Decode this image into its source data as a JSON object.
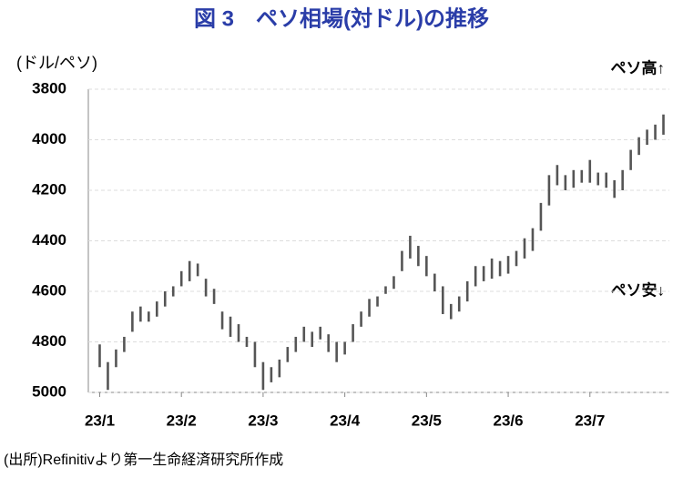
{
  "chart_data": {
    "type": "range",
    "title": "図 3　ペソ相場(対ドル)の推移",
    "y_label": "(ドル/ペソ)",
    "annotations": [
      "ペソ高↑",
      "ペソ安↓"
    ],
    "source": "(出所)Refinitivより第一生命経済研究所作成",
    "color": "#555555",
    "inverted": true,
    "grid": true,
    "ylim": [
      3800,
      5000
    ],
    "yticks": [
      3800,
      4000,
      4200,
      4400,
      4600,
      4800,
      5000
    ],
    "categories": [
      "23/1",
      null,
      null,
      null,
      null,
      null,
      null,
      null,
      null,
      null,
      "23/2",
      null,
      null,
      null,
      null,
      null,
      null,
      null,
      null,
      null,
      "23/3",
      null,
      null,
      null,
      null,
      null,
      null,
      null,
      null,
      null,
      "23/4",
      null,
      null,
      null,
      null,
      null,
      null,
      null,
      null,
      null,
      "23/5",
      null,
      null,
      null,
      null,
      null,
      null,
      null,
      null,
      null,
      "23/6",
      null,
      null,
      null,
      null,
      null,
      null,
      null,
      null,
      null,
      "23/7",
      null,
      null,
      null,
      null,
      null,
      null,
      null,
      null,
      null
    ],
    "low": [
      4810,
      4880,
      4830,
      4780,
      4680,
      4660,
      4680,
      4640,
      4600,
      4580,
      4520,
      4480,
      4490,
      4550,
      4590,
      4680,
      4700,
      4730,
      4780,
      4800,
      4880,
      4900,
      4870,
      4820,
      4780,
      4740,
      4760,
      4740,
      4770,
      4800,
      4800,
      4730,
      4680,
      4630,
      4620,
      4580,
      4540,
      4440,
      4380,
      4420,
      4460,
      4530,
      4580,
      4650,
      4620,
      4560,
      4500,
      4500,
      4470,
      4480,
      4460,
      4440,
      4390,
      4350,
      4250,
      4140,
      4100,
      4140,
      4120,
      4120,
      4080,
      4130,
      4130,
      4160,
      4120,
      4040,
      3990,
      3960,
      3940,
      3900
    ],
    "high": [
      4900,
      4990,
      4900,
      4840,
      4760,
      4720,
      4720,
      4700,
      4660,
      4620,
      4580,
      4560,
      4540,
      4620,
      4650,
      4750,
      4780,
      4800,
      4820,
      4900,
      4990,
      4960,
      4940,
      4880,
      4840,
      4800,
      4820,
      4790,
      4840,
      4880,
      4850,
      4800,
      4740,
      4700,
      4660,
      4610,
      4590,
      4520,
      4470,
      4500,
      4540,
      4600,
      4690,
      4710,
      4680,
      4640,
      4580,
      4560,
      4550,
      4540,
      4530,
      4500,
      4470,
      4440,
      4360,
      4260,
      4180,
      4200,
      4190,
      4170,
      4170,
      4180,
      4190,
      4230,
      4200,
      4120,
      4060,
      4020,
      4000,
      3980
    ]
  }
}
